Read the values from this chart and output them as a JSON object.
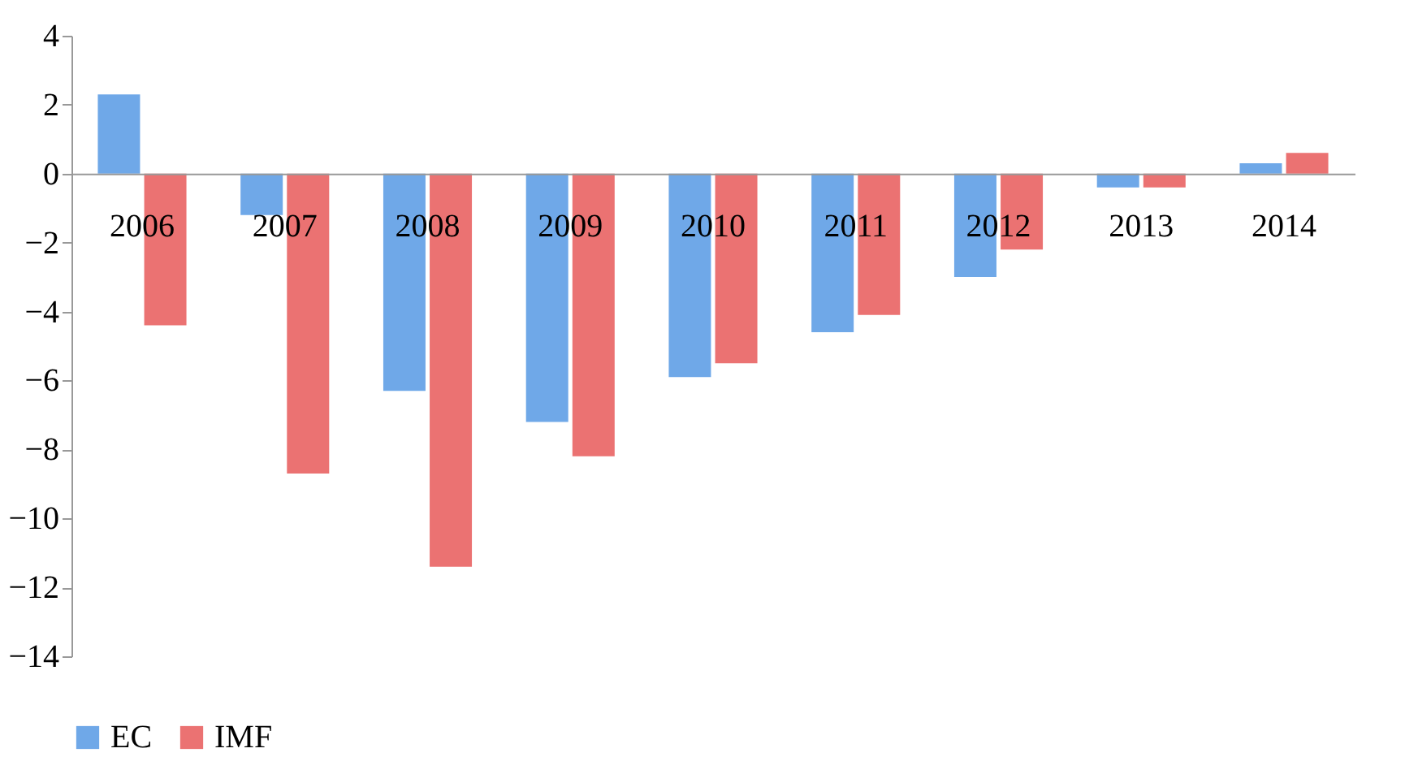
{
  "chart_data": {
    "type": "bar",
    "categories": [
      "2006",
      "2007",
      "2008",
      "2009",
      "2010",
      "2011",
      "2012",
      "2013",
      "2014"
    ],
    "series": [
      {
        "name": "EC",
        "color": "#6fa8e8",
        "values": [
          2.3,
          -1.2,
          -6.3,
          -7.2,
          -5.9,
          -4.6,
          -3.0,
          -0.4,
          0.3
        ]
      },
      {
        "name": "IMF",
        "color": "#eb7272",
        "values": [
          -4.4,
          -8.7,
          -11.4,
          -8.2,
          -5.5,
          -4.1,
          -2.2,
          -0.4,
          0.6
        ]
      }
    ],
    "ylim": [
      -14,
      4
    ],
    "yticks": [
      -14,
      -12,
      -10,
      -8,
      -6,
      -4,
      -2,
      0,
      2,
      4
    ],
    "grid": false,
    "legend": "bottom"
  }
}
